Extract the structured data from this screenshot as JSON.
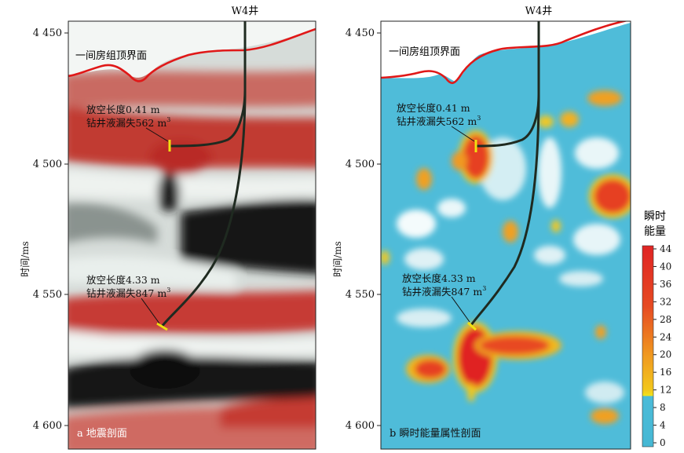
{
  "well_name": "W4井",
  "ylabel": "时间/ms",
  "y_ticks": [
    "4 450",
    "4 500",
    "4 550",
    "4 600"
  ],
  "horizon_label": "一间房组顶界面",
  "annotation_upper": {
    "line1": "放空长度0.41 m",
    "line2_prefix": "钻井液漏失562 m",
    "sup": "3"
  },
  "annotation_lower": {
    "line1": "放空长度4.33 m",
    "line2_prefix": "钻井液漏失847 m",
    "sup": "3"
  },
  "panel_a_caption": "a 地震剖面",
  "panel_b_caption": "b 瞬时能量属性剖面",
  "colorbar": {
    "title_line1": "瞬时",
    "title_line2": "能量",
    "ticks": [
      "44",
      "40",
      "36",
      "32",
      "28",
      "24",
      "20",
      "16",
      "12",
      "8",
      "4",
      "0"
    ],
    "colors": {
      "high": "#e02424",
      "mid": "#f0a020",
      "low_yellow": "#f2e21a",
      "cyan": "#4bbbd8"
    }
  }
}
